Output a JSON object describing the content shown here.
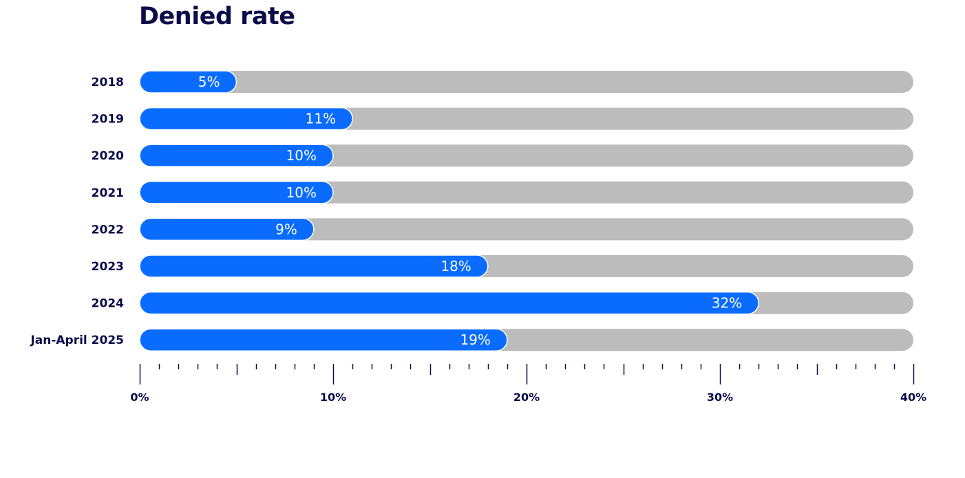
{
  "chart_data": {
    "type": "bar",
    "orientation": "horizontal",
    "title": "Denied rate",
    "categories": [
      "2018",
      "2019",
      "2020",
      "2021",
      "2022",
      "2023",
      "2024",
      "Jan-April 2025"
    ],
    "values": [
      5,
      11,
      10,
      10,
      9,
      18,
      32,
      19
    ],
    "value_labels": [
      "5%",
      "11%",
      "10%",
      "10%",
      "9%",
      "18%",
      "32%",
      "19%"
    ],
    "xlim": [
      0,
      40
    ],
    "x_ticks": [
      0,
      10,
      20,
      30,
      40
    ],
    "x_tick_labels": [
      "0%",
      "10%",
      "20%",
      "30%",
      "40%"
    ],
    "minor_tick_step": 1,
    "grid": false,
    "legend": "none",
    "colors": {
      "bar": "#0a6cff",
      "track": "#bcbcbc",
      "text": "#0c0c4a",
      "value_text": "#ffffff"
    }
  }
}
